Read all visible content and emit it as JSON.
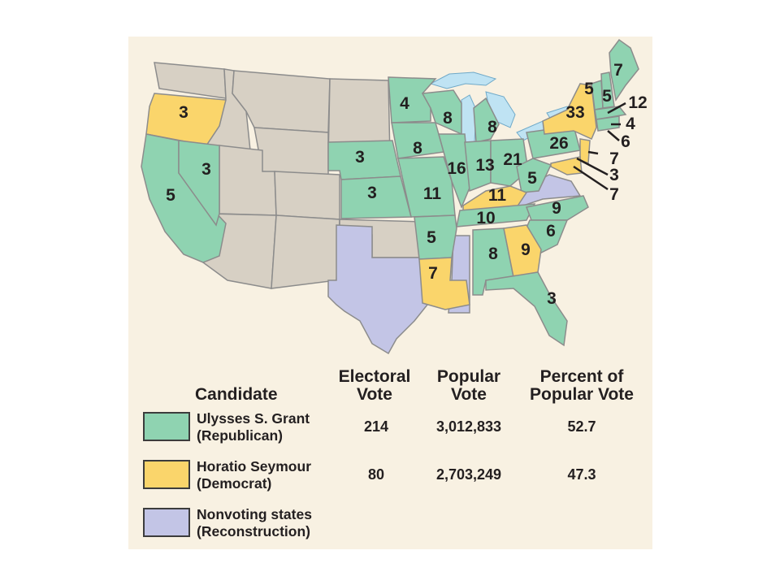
{
  "colors": {
    "republican": "#8fd3b1",
    "democrat": "#fad56b",
    "nonvoting": "#c3c5e6",
    "territory": "#d7d0c4",
    "water": "#bfe3f3",
    "background": "#f8f1e2"
  },
  "map": {
    "state_votes": [
      {
        "state": "Oregon",
        "party": "democrat",
        "votes": "3"
      },
      {
        "state": "California",
        "party": "republican",
        "votes": "5"
      },
      {
        "state": "Nevada",
        "party": "republican",
        "votes": "3"
      },
      {
        "state": "Nebraska",
        "party": "republican",
        "votes": "3"
      },
      {
        "state": "Kansas",
        "party": "republican",
        "votes": "3"
      },
      {
        "state": "Minnesota",
        "party": "republican",
        "votes": "4"
      },
      {
        "state": "Iowa",
        "party": "republican",
        "votes": "8"
      },
      {
        "state": "Wisconsin",
        "party": "republican",
        "votes": "8"
      },
      {
        "state": "Missouri",
        "party": "republican",
        "votes": "11"
      },
      {
        "state": "Illinois",
        "party": "republican",
        "votes": "16"
      },
      {
        "state": "Michigan",
        "party": "republican",
        "votes": "8"
      },
      {
        "state": "Indiana",
        "party": "republican",
        "votes": "13"
      },
      {
        "state": "Ohio",
        "party": "republican",
        "votes": "21"
      },
      {
        "state": "Pennsylvania",
        "party": "republican",
        "votes": "26"
      },
      {
        "state": "New York",
        "party": "democrat",
        "votes": "33"
      },
      {
        "state": "Kentucky",
        "party": "democrat",
        "votes": "11"
      },
      {
        "state": "West Virginia",
        "party": "republican",
        "votes": "5"
      },
      {
        "state": "Tennessee",
        "party": "republican",
        "votes": "10"
      },
      {
        "state": "Arkansas",
        "party": "republican",
        "votes": "5"
      },
      {
        "state": "Louisiana",
        "party": "democrat",
        "votes": "7"
      },
      {
        "state": "Alabama",
        "party": "republican",
        "votes": "8"
      },
      {
        "state": "Georgia",
        "party": "democrat",
        "votes": "9"
      },
      {
        "state": "North Carolina",
        "party": "republican",
        "votes": "9"
      },
      {
        "state": "South Carolina",
        "party": "republican",
        "votes": "6"
      },
      {
        "state": "Florida",
        "party": "republican",
        "votes": "3"
      },
      {
        "state": "Maine",
        "party": "republican",
        "votes": "7"
      },
      {
        "state": "New Hampshire",
        "party": "republican",
        "votes": "5"
      },
      {
        "state": "Vermont",
        "party": "republican",
        "votes": "5"
      },
      {
        "state": "Massachusetts",
        "party": "republican",
        "votes": "12"
      },
      {
        "state": "Rhode Island",
        "party": "republican",
        "votes": "4"
      },
      {
        "state": "Connecticut",
        "party": "republican",
        "votes": "6"
      },
      {
        "state": "New Jersey",
        "party": "democrat",
        "votes": "7"
      },
      {
        "state": "Delaware",
        "party": "democrat",
        "votes": "3"
      },
      {
        "state": "Maryland",
        "party": "democrat",
        "votes": "7"
      }
    ]
  },
  "legend": {
    "headers": {
      "candidate": "Candidate",
      "electoral": "Electoral\nVote",
      "popular": "Popular\nVote",
      "percent": "Percent of\nPopular Vote"
    },
    "rows": [
      {
        "name": "Ulysses S. Grant\n(Republican)",
        "electoral": "214",
        "popular": "3,012,833",
        "percent": "52.7"
      },
      {
        "name": "Horatio Seymour\n(Democrat)",
        "electoral": "80",
        "popular": "2,703,249",
        "percent": "47.3"
      },
      {
        "name": "Nonvoting states\n(Reconstruction)",
        "electoral": "",
        "popular": "",
        "percent": ""
      }
    ]
  }
}
